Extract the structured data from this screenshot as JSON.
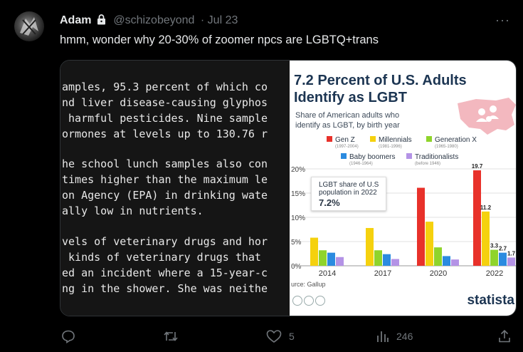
{
  "tweet": {
    "display_name": "Adam",
    "handle": "@schizobeyond",
    "date": "· Jul 23",
    "text": "hmm, wonder why 20-30% of zoomer npcs are LGBTQ+trans"
  },
  "actions": {
    "reply_count": "",
    "retweet_count": "",
    "like_count": "5",
    "views_count": "246"
  },
  "terminal_lines": [
    "amples, 95.3 percent of which co",
    "nd liver disease-causing glyphos",
    " harmful pesticides. Nine sample",
    "ormones at levels up to 130.76 r",
    "",
    "he school lunch samples also con",
    "times higher than the maximum le",
    "on Agency (EPA) in drinking wate",
    "ally low in nutrients.",
    "",
    "vels of veterinary drugs and hor",
    " kinds of veterinary drugs that ",
    "ed an incident where a 15-year-c",
    "ng in the shower. She was neithe"
  ],
  "infographic": {
    "title": "7.2 Percent of U.S. Adults Identify as LGBT",
    "subtitle": "Share of American adults who identify as LGBT, by birth year",
    "callout_label": "LGBT share of U.S population in 2022",
    "callout_value": "7.2%",
    "source": "urce: Gallup",
    "brand": "statista",
    "colors": {
      "gen_z": "#e8312a",
      "millennials": "#f5d10e",
      "gen_x": "#8fd42b",
      "boomers": "#2b8be0",
      "traditionalists": "#b493e6"
    }
  },
  "chart_data": {
    "type": "bar",
    "title": "7.2 Percent of U.S. Adults Identify as LGBT",
    "subtitle": "Share of American adults who identify as LGBT, by birth year",
    "categories": [
      "2014",
      "2017",
      "2020",
      "2022"
    ],
    "ytick_labels": [
      "0%",
      "5%",
      "10%",
      "15%",
      "20%"
    ],
    "series": [
      {
        "name": "Gen Z",
        "years": "(1997-2004)",
        "color": "#e8312a",
        "values": [
          null,
          null,
          16.1,
          19.7
        ]
      },
      {
        "name": "Millennials",
        "years": "(1981-1996)",
        "color": "#f5d10e",
        "values": [
          5.8,
          7.8,
          9.1,
          11.2
        ]
      },
      {
        "name": "Generation X",
        "years": "(1965-1980)",
        "color": "#8fd42b",
        "values": [
          3.2,
          3.2,
          3.8,
          3.3
        ]
      },
      {
        "name": "Baby boomers",
        "years": "(1946-1964)",
        "color": "#2b8be0",
        "values": [
          2.7,
          2.4,
          2.0,
          2.7
        ]
      },
      {
        "name": "Traditionalists",
        "years": "(before 1946)",
        "color": "#b493e6",
        "values": [
          1.8,
          1.4,
          1.3,
          1.7
        ]
      }
    ],
    "data_labels": {
      "Gen Z 2022": "19.7",
      "Millennials 2022": "11.2",
      "Generation X 2022": "3.3",
      "Baby boomers 2022": "2.7",
      "Traditionalists 2022": "1.7"
    },
    "ylim": [
      0,
      20
    ],
    "grid": true,
    "legend": "top"
  }
}
